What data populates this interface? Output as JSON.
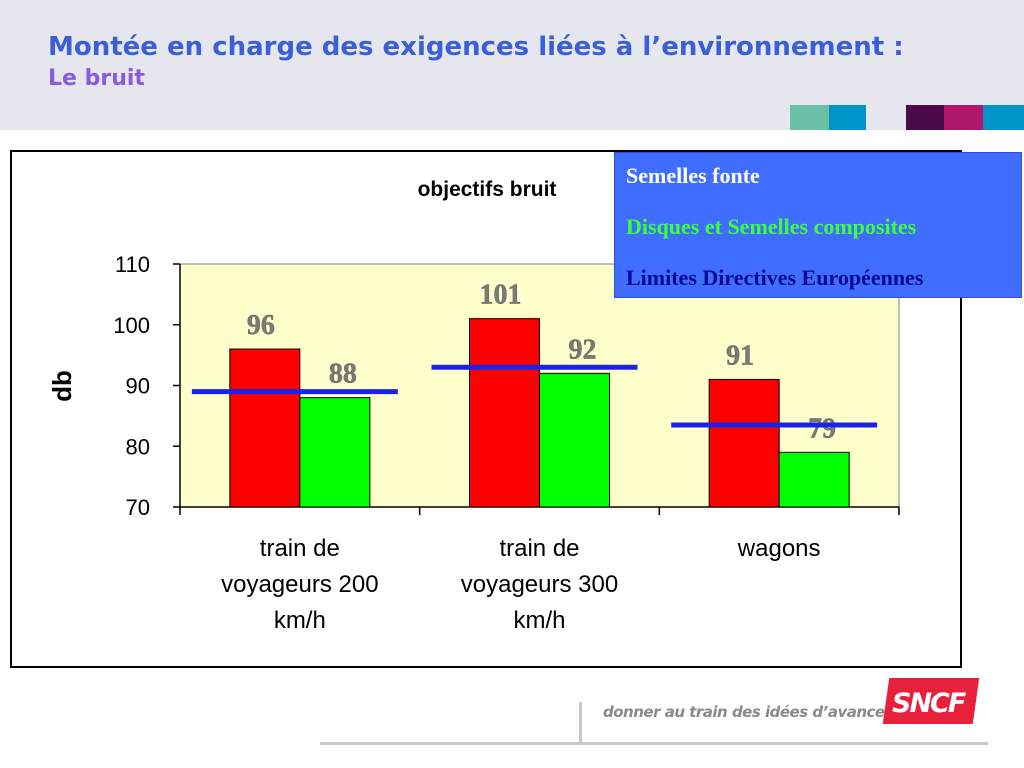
{
  "slide": {
    "title_line1": "Montée en charge des exigences liées à l’environnement :",
    "title_line2": "Le bruit",
    "tagline": "donner au train des idées d’avance",
    "logo_text": "SNCF",
    "swatch_colors": [
      "#6bc0a8",
      "#0094c8",
      "#4a0a4a",
      "#b0186c",
      "#0094c8"
    ]
  },
  "legend": {
    "items": [
      {
        "label": "Semelles fonte",
        "color": "#ffffff"
      },
      {
        "label": "Disques et Semelles composites",
        "color": "#3cff3c"
      },
      {
        "label": "Limites Directives Européennes",
        "color": "#0a0a90"
      }
    ]
  },
  "chart_data": {
    "type": "bar",
    "title": "objectifs bruit",
    "ylabel": "db",
    "xlabel": "",
    "ylim": [
      70,
      110
    ],
    "yticks": [
      70,
      80,
      90,
      100,
      110
    ],
    "grid": false,
    "legend_position": "top-right",
    "categories": [
      [
        "train de",
        "voyageurs 200",
        "km/h"
      ],
      [
        "train de",
        "voyageurs 300",
        "km/h"
      ],
      [
        "wagons"
      ]
    ],
    "series": [
      {
        "name": "Semelles fonte",
        "values": [
          96,
          101,
          91
        ],
        "color": "#ff0000"
      },
      {
        "name": "Disques et Semelles composites",
        "values": [
          88,
          92,
          79
        ],
        "color": "#00ff00"
      }
    ],
    "limit_lines": {
      "name": "Limites Directives Européennes",
      "values": [
        89,
        93,
        83.5
      ],
      "color": "#1a22e6"
    },
    "data_labels": [
      "96",
      "88",
      "101",
      "92",
      "91",
      "79"
    ],
    "plot_background": "#ffffcc"
  }
}
